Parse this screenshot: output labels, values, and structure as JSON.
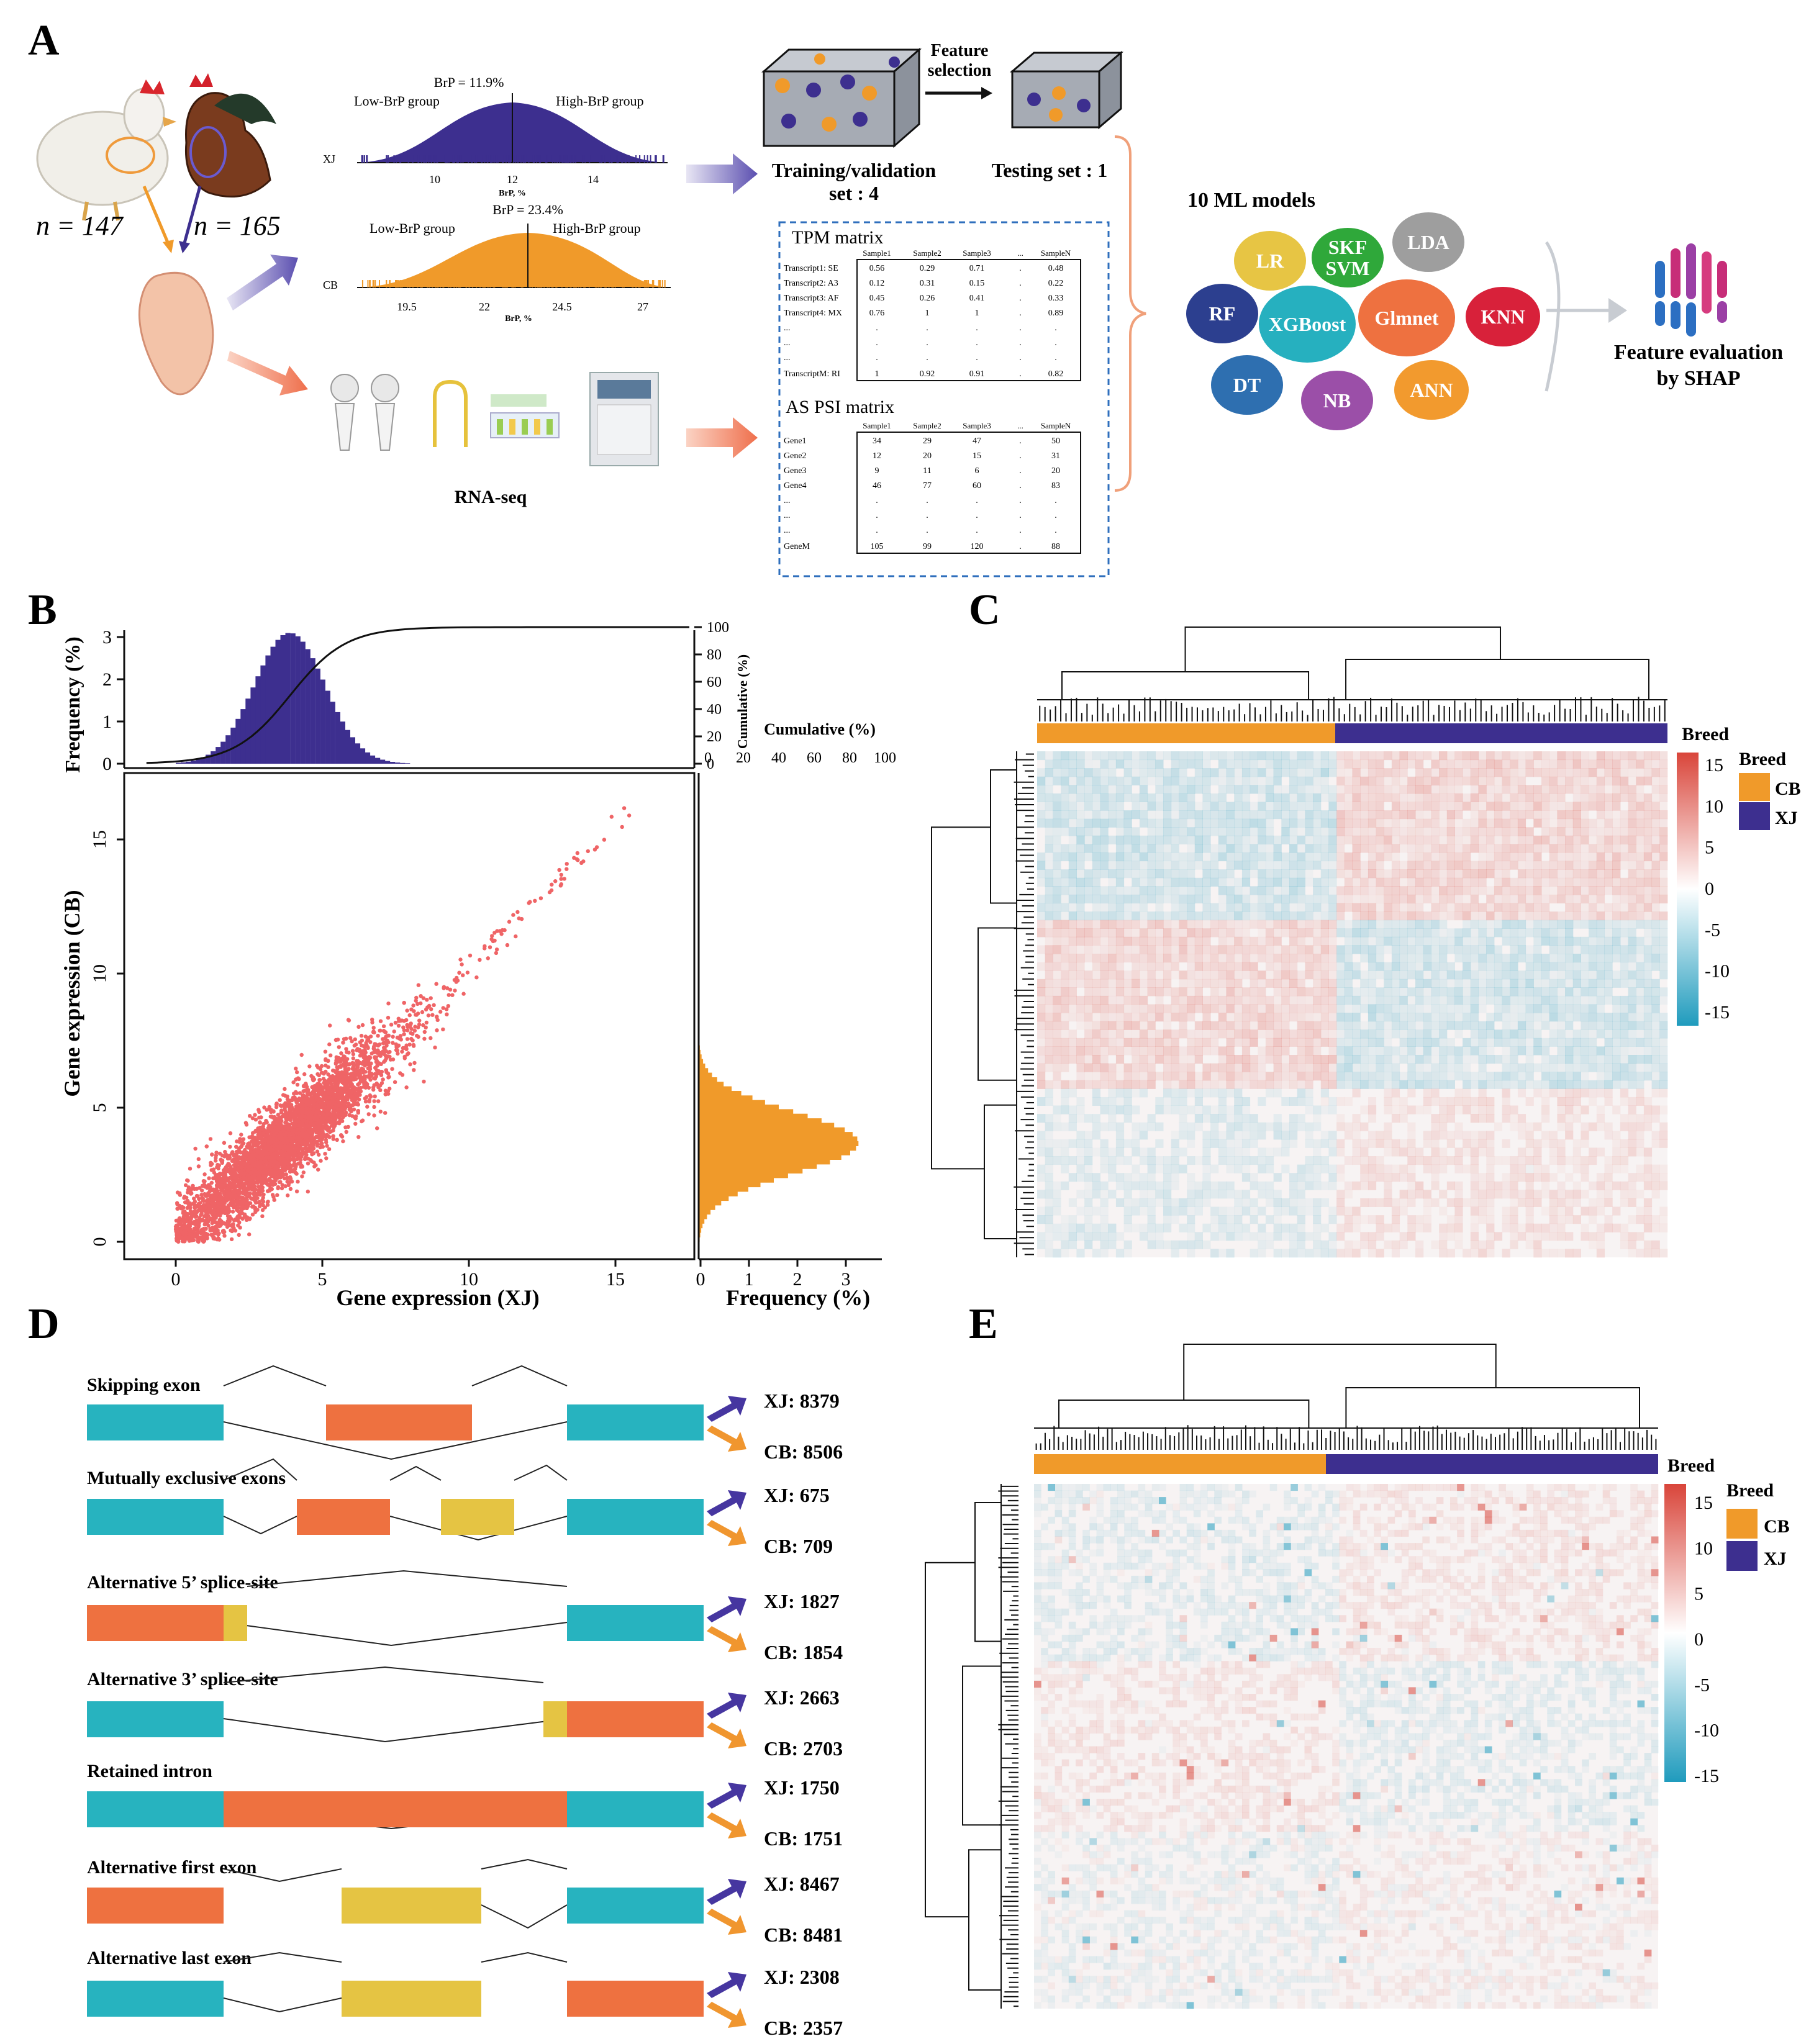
{
  "panel_labels": {
    "a": "A",
    "b": "B",
    "c": "C",
    "d": "D",
    "e": "E"
  },
  "colors": {
    "purple": "#3d2f8f",
    "orange": "#f09a2a",
    "salmon": "#ef6b6b",
    "teal": "#27b3bf",
    "exon_orange": "#ee7140",
    "exon_yellow": "#e5c443",
    "heat_red": "#d9453a",
    "heat_blue": "#1f9bbd",
    "arrow_purple": "#4636a0",
    "arrow_orange": "#f0962f"
  },
  "panel_a": {
    "n_left": "n = 147",
    "n_right": "n = 165",
    "xj": {
      "label": "XJ",
      "brp": "BrP = 11.9%",
      "low": "Low-BrP group",
      "high": "High-BrP group",
      "ticks": [
        "10",
        "12",
        "14"
      ],
      "axis": "BrP, %"
    },
    "cb": {
      "label": "CB",
      "brp": "BrP = 23.4%",
      "low": "Low-BrP group",
      "high": "High-BrP group",
      "ticks": [
        "19.5",
        "22",
        "24.5",
        "27"
      ],
      "axis": "BrP, %"
    },
    "feature_selection": [
      "Feature",
      "selection"
    ],
    "training": [
      "Training/validation",
      "set : 4"
    ],
    "testing": "Testing set : 1",
    "rna_seq": "RNA-seq",
    "tpm": {
      "title": "TPM matrix",
      "header": [
        "Sample1",
        "Sample2",
        "Sample3",
        "...",
        "SampleN"
      ],
      "rows": [
        {
          "name": "Transcript1: SE",
          "vals": [
            "0.56",
            "0.29",
            "0.71",
            ".",
            "0.48"
          ]
        },
        {
          "name": "Transcript2: A3",
          "vals": [
            "0.12",
            "0.31",
            "0.15",
            ".",
            "0.22"
          ]
        },
        {
          "name": "Transcript3: AF",
          "vals": [
            "0.45",
            "0.26",
            "0.41",
            ".",
            "0.33"
          ]
        },
        {
          "name": "Transcript4: MX",
          "vals": [
            "0.76",
            "1",
            "1",
            ".",
            "0.89"
          ]
        },
        {
          "name": "...",
          "vals": [
            ".",
            ".",
            ".",
            ".",
            "."
          ]
        },
        {
          "name": "...",
          "vals": [
            ".",
            ".",
            ".",
            ".",
            "."
          ]
        },
        {
          "name": "...",
          "vals": [
            ".",
            ".",
            ".",
            ".",
            "."
          ]
        },
        {
          "name": "TranscriptM: RI",
          "vals": [
            "1",
            "0.92",
            "0.91",
            ".",
            "0.82"
          ]
        }
      ]
    },
    "psi": {
      "title": "AS PSI matrix",
      "header": [
        "Sample1",
        "Sample2",
        "Sample3",
        "...",
        "SampleN"
      ],
      "rows": [
        {
          "name": "Gene1",
          "vals": [
            "34",
            "29",
            "47",
            ".",
            "50"
          ]
        },
        {
          "name": "Gene2",
          "vals": [
            "12",
            "20",
            "15",
            ".",
            "31"
          ]
        },
        {
          "name": "Gene3",
          "vals": [
            "9",
            "11",
            "6",
            ".",
            "20"
          ]
        },
        {
          "name": "Gene4",
          "vals": [
            "46",
            "77",
            "60",
            ".",
            "83"
          ]
        },
        {
          "name": "...",
          "vals": [
            ".",
            ".",
            ".",
            ".",
            "."
          ]
        },
        {
          "name": "...",
          "vals": [
            ".",
            ".",
            ".",
            ".",
            "."
          ]
        },
        {
          "name": "...",
          "vals": [
            ".",
            ".",
            ".",
            ".",
            "."
          ]
        },
        {
          "name": "GeneM",
          "vals": [
            "105",
            "99",
            "120",
            ".",
            "88"
          ]
        }
      ]
    },
    "ml_title": "10 ML models",
    "models": [
      {
        "name": "LR",
        "color": "#e7c544"
      },
      {
        "name": "SKF SVM",
        "color": "#2fa83a"
      },
      {
        "name": "LDA",
        "color": "#9e9e9e"
      },
      {
        "name": "RF",
        "color": "#2c3f8f"
      },
      {
        "name": "XGBoost",
        "color": "#26b0bf"
      },
      {
        "name": "Glmnet",
        "color": "#ee7140"
      },
      {
        "name": "KNN",
        "color": "#d8213a"
      },
      {
        "name": "DT",
        "color": "#2e6fb0"
      },
      {
        "name": "NB",
        "color": "#9b4fa8"
      },
      {
        "name": "ANN",
        "color": "#f29a2e"
      }
    ],
    "shap": [
      "Feature evaluation",
      "by SHAP"
    ]
  },
  "panel_b": {
    "xlabel": "Gene expression (XJ)",
    "ylabel": "Gene expression (CB)",
    "top_ylabel": "Frequency (%)",
    "right_xlabel": "Frequency (%)",
    "cum_label": "Cumulative (%)",
    "cum_axis": "Cumulative (%)",
    "x_ticks": [
      "0",
      "5",
      "10",
      "15"
    ],
    "y_ticks": [
      "0",
      "5",
      "10",
      "15"
    ],
    "top_ticks": [
      "0",
      "1",
      "2",
      "3"
    ],
    "cum_ticks": [
      "0",
      "20",
      "40",
      "60",
      "80",
      "100"
    ],
    "right_ticks": [
      "0",
      "1",
      "2",
      "3"
    ]
  },
  "panel_c": {
    "breed_title": "Breed",
    "legend_title": "Breed",
    "legend": [
      {
        "label": "CB",
        "color": "#f09a2a"
      },
      {
        "label": "XJ",
        "color": "#3d2f8f"
      }
    ],
    "scale": [
      "15",
      "10",
      "5",
      "0",
      "-5",
      "-10",
      "-15"
    ]
  },
  "panel_d": {
    "events": [
      {
        "name": "Skipping exon",
        "xj": "XJ: 8379",
        "cb": "CB: 8506"
      },
      {
        "name": "Mutually exclusive exons",
        "xj": "XJ: 675",
        "cb": "CB: 709"
      },
      {
        "name": "Alternative 5’ splice-site",
        "xj": "XJ: 1827",
        "cb": "CB: 1854"
      },
      {
        "name": "Alternative 3’ splice-site",
        "xj": "XJ: 2663",
        "cb": "CB: 2703"
      },
      {
        "name": "Retained intron",
        "xj": "XJ: 1750",
        "cb": "CB: 1751"
      },
      {
        "name": "Alternative first exon",
        "xj": "XJ: 8467",
        "cb": "CB: 8481"
      },
      {
        "name": "Alternative last exon",
        "xj": "XJ: 2308",
        "cb": "CB: 2357"
      }
    ]
  },
  "panel_e": {
    "breed_title": "Breed",
    "legend_title": "Breed",
    "legend": [
      {
        "label": "CB",
        "color": "#f09a2a"
      },
      {
        "label": "XJ",
        "color": "#3d2f8f"
      }
    ],
    "scale": [
      "15",
      "10",
      "5",
      "0",
      "-5",
      "-10",
      "-15"
    ]
  }
}
